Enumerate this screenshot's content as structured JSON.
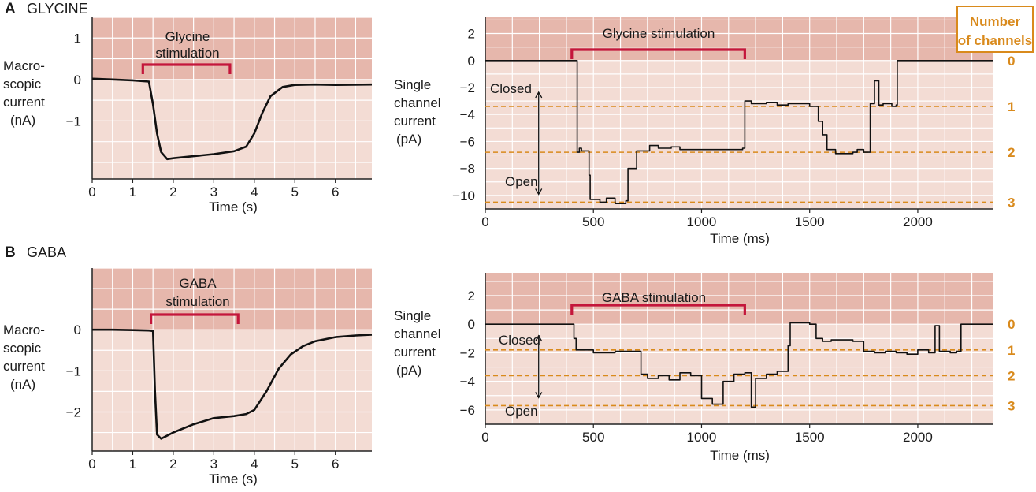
{
  "figure": {
    "panels": [
      {
        "letter": "A",
        "title": "GLYCINE",
        "macro": {
          "ylabel_lines": [
            "Macro-",
            "scopic",
            "current",
            "(nA)"
          ],
          "xlabel": "Time (s)",
          "stim_lines": [
            "Glycine",
            "stimulation"
          ]
        },
        "single": {
          "ylabel_lines": [
            "Single",
            "channel",
            "current",
            "(pA)"
          ],
          "xlabel": "Time (ms)",
          "stim_lines": [
            "Glycine stimulation"
          ],
          "state_labels": [
            "Closed",
            "Open"
          ]
        }
      },
      {
        "letter": "B",
        "title": "GABA",
        "macro": {
          "ylabel_lines": [
            "Macro-",
            "scopic",
            "current",
            "(nA)"
          ],
          "xlabel": "Time (s)",
          "stim_lines": [
            "GABA",
            "stimulation"
          ]
        },
        "single": {
          "ylabel_lines": [
            "Single",
            "channel",
            "current",
            "(pA)"
          ],
          "xlabel": "Time (ms)",
          "stim_lines": [
            "GABA stimulation"
          ],
          "state_labels": [
            "Closed",
            "Open"
          ]
        }
      }
    ],
    "number_of_channels_label_lines": [
      "Number",
      "of channels"
    ],
    "colors": {
      "background_stimulated": "#f3dcd4",
      "background_pre": "#e6b7ac",
      "grid": "#ffffff",
      "trace": "#111111",
      "stim_bar": "#c4163b",
      "channel_level": "#d98a1c"
    }
  },
  "chart_data": [
    {
      "id": "A-macro",
      "type": "line",
      "title": "",
      "xlabel": "Time (s)",
      "ylabel": "Macroscopic current (nA)",
      "xlim": [
        0,
        6.9
      ],
      "ylim": [
        -2.4,
        1.5
      ],
      "xticks": [
        0,
        1,
        2,
        3,
        4,
        5,
        6
      ],
      "yticks": [
        1,
        0,
        -1
      ],
      "ytick_labels": [
        "1",
        "0",
        "−1"
      ],
      "grid": true,
      "stimulation": {
        "label": "Glycine stimulation",
        "start": 1.25,
        "end": 3.4
      },
      "series": [
        {
          "x": [
            0,
            0.5,
            1.0,
            1.4,
            1.5,
            1.6,
            1.7,
            1.85,
            2.0,
            2.5,
            3.0,
            3.5,
            3.8,
            4.0,
            4.2,
            4.4,
            4.7,
            5.0,
            5.5,
            6.0,
            6.9
          ],
          "y": [
            0.02,
            0.0,
            -0.02,
            -0.05,
            -0.6,
            -1.3,
            -1.75,
            -1.92,
            -1.9,
            -1.85,
            -1.8,
            -1.73,
            -1.62,
            -1.3,
            -0.8,
            -0.4,
            -0.18,
            -0.13,
            -0.12,
            -0.13,
            -0.12
          ]
        }
      ]
    },
    {
      "id": "A-single",
      "type": "line",
      "title": "",
      "xlabel": "Time (ms)",
      "ylabel": "Single channel current (pA)",
      "xlim": [
        0,
        2350
      ],
      "ylim": [
        -11,
        3.2
      ],
      "xticks": [
        0,
        500,
        1000,
        1500,
        2000
      ],
      "yticks": [
        2,
        0,
        -2,
        -4,
        -6,
        -8,
        -10
      ],
      "ytick_labels": [
        "2",
        "0",
        "−2",
        "−4",
        "−6",
        "−8",
        "−10"
      ],
      "grid": true,
      "stimulation": {
        "label": "Glycine stimulation",
        "start": 400,
        "end": 1200
      },
      "channel_levels": [
        {
          "channels": "0",
          "current": 0
        },
        {
          "channels": "1",
          "current": -3.4
        },
        {
          "channels": "2",
          "current": -6.8
        },
        {
          "channels": "3",
          "current": -10.5
        }
      ],
      "series": [
        {
          "x": [
            0,
            400,
            420,
            425,
            435,
            445,
            480,
            485,
            530,
            560,
            600,
            650,
            660,
            700,
            760,
            800,
            860,
            900,
            1100,
            1190,
            1200,
            1230,
            1300,
            1350,
            1400,
            1500,
            1540,
            1560,
            1580,
            1620,
            1700,
            1720,
            1750,
            1780,
            1800,
            1820,
            1840,
            1880,
            1900,
            1905,
            2000,
            2350
          ],
          "y": [
            0,
            0,
            0,
            -6.8,
            -6.5,
            -6.7,
            -8.5,
            -10.3,
            -10.5,
            -10.2,
            -10.6,
            -10.4,
            -8.0,
            -6.7,
            -6.3,
            -6.5,
            -6.4,
            -6.6,
            -6.6,
            -6.5,
            -3.0,
            -3.2,
            -3.1,
            -3.3,
            -3.2,
            -3.4,
            -4.5,
            -5.5,
            -6.6,
            -6.9,
            -6.8,
            -6.6,
            -6.8,
            -3.2,
            -1.5,
            -3.3,
            -3.2,
            -3.4,
            -3.3,
            0,
            0,
            0
          ]
        }
      ]
    },
    {
      "id": "B-macro",
      "type": "line",
      "title": "",
      "xlabel": "Time (s)",
      "ylabel": "Macroscopic current (nA)",
      "xlim": [
        0,
        6.9
      ],
      "ylim": [
        -2.95,
        1.5
      ],
      "xticks": [
        0,
        1,
        2,
        3,
        4,
        5,
        6
      ],
      "yticks": [
        0,
        -1,
        -2
      ],
      "ytick_labels": [
        "0",
        "−1",
        "−2"
      ],
      "grid": true,
      "stimulation": {
        "label": "GABA stimulation",
        "start": 1.45,
        "end": 3.6
      },
      "series": [
        {
          "x": [
            0,
            0.5,
            1.0,
            1.4,
            1.5,
            1.55,
            1.6,
            1.7,
            1.8,
            2.0,
            2.5,
            3.0,
            3.5,
            3.8,
            4.0,
            4.3,
            4.6,
            4.9,
            5.2,
            5.5,
            6.0,
            6.5,
            6.9
          ],
          "y": [
            0,
            0,
            -0.01,
            -0.02,
            -0.03,
            -1.5,
            -2.55,
            -2.65,
            -2.6,
            -2.5,
            -2.3,
            -2.15,
            -2.1,
            -2.05,
            -1.95,
            -1.5,
            -0.95,
            -0.6,
            -0.4,
            -0.28,
            -0.18,
            -0.14,
            -0.12
          ]
        }
      ]
    },
    {
      "id": "B-single",
      "type": "line",
      "title": "",
      "xlabel": "Time (ms)",
      "ylabel": "Single channel current (pA)",
      "xlim": [
        0,
        2350
      ],
      "ylim": [
        -7.0,
        3.6
      ],
      "xticks": [
        0,
        500,
        1000,
        1500,
        2000
      ],
      "yticks": [
        2,
        0,
        -2,
        -4,
        -6
      ],
      "ytick_labels": [
        "2",
        "0",
        "−2",
        "−4",
        "−6"
      ],
      "grid": true,
      "stimulation": {
        "label": "GABA stimulation",
        "start": 400,
        "end": 1200
      },
      "channel_levels": [
        {
          "channels": "0",
          "current": 0
        },
        {
          "channels": "1",
          "current": -1.8
        },
        {
          "channels": "2",
          "current": -3.6
        },
        {
          "channels": "3",
          "current": -5.7
        }
      ],
      "series": [
        {
          "x": [
            0,
            380,
            400,
            410,
            420,
            500,
            600,
            700,
            720,
            750,
            800,
            850,
            900,
            950,
            1000,
            1050,
            1100,
            1150,
            1200,
            1230,
            1250,
            1300,
            1350,
            1400,
            1410,
            1500,
            1530,
            1560,
            1600,
            1700,
            1750,
            1800,
            1850,
            1900,
            1950,
            2000,
            2050,
            2080,
            2100,
            2150,
            2180,
            2200,
            2350
          ],
          "y": [
            0,
            0,
            0,
            -1.0,
            -1.8,
            -2.0,
            -1.9,
            -1.9,
            -3.5,
            -3.8,
            -3.6,
            -3.9,
            -3.4,
            -3.6,
            -5.2,
            -5.6,
            -4.0,
            -3.5,
            -3.4,
            -5.8,
            -3.8,
            -3.5,
            -3.3,
            -1.5,
            0.1,
            0,
            -1.0,
            -1.2,
            -1.1,
            -1.2,
            -1.9,
            -2.0,
            -1.9,
            -2.0,
            -2.1,
            -1.8,
            -2.0,
            -0.1,
            -1.9,
            -2.0,
            -1.9,
            0,
            0
          ]
        }
      ]
    }
  ]
}
